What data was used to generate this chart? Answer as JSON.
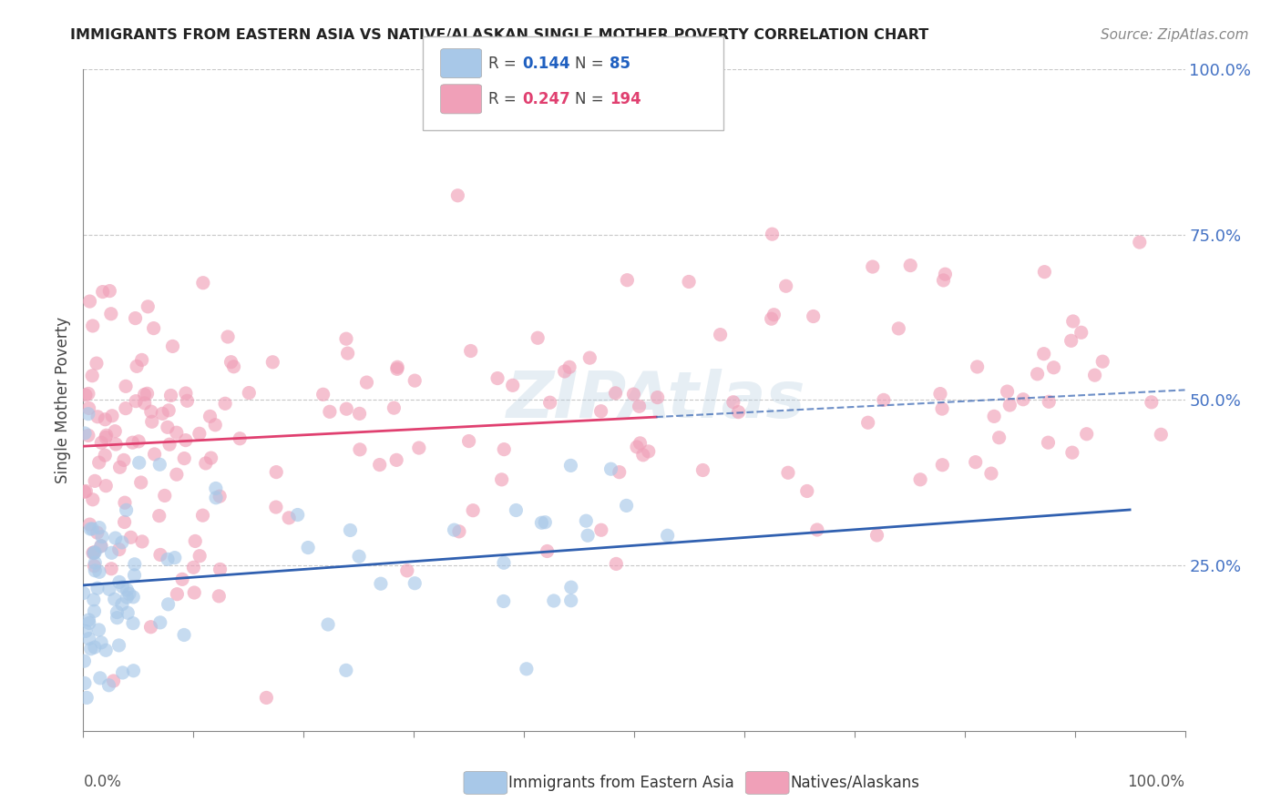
{
  "title": "IMMIGRANTS FROM EASTERN ASIA VS NATIVE/ALASKAN SINGLE MOTHER POVERTY CORRELATION CHART",
  "source": "Source: ZipAtlas.com",
  "ylabel": "Single Mother Poverty",
  "ytick_labels": [
    "100.0%",
    "75.0%",
    "50.0%",
    "25.0%"
  ],
  "ytick_values": [
    100,
    75,
    50,
    25
  ],
  "xlim": [
    0,
    100
  ],
  "ylim": [
    0,
    100
  ],
  "legend_r_blue": "R = 0.144",
  "legend_n_blue": "N =  85",
  "legend_r_pink": "R = 0.247",
  "legend_n_pink": "N = 194",
  "blue_color": "#a8c8e8",
  "pink_color": "#f0a0b8",
  "trend_blue": "#3060b0",
  "trend_pink": "#e04070",
  "blue_r": 0.144,
  "blue_intercept": 22.0,
  "blue_slope": 0.12,
  "pink_r": 0.247,
  "pink_intercept": 43.0,
  "pink_slope": 0.085
}
